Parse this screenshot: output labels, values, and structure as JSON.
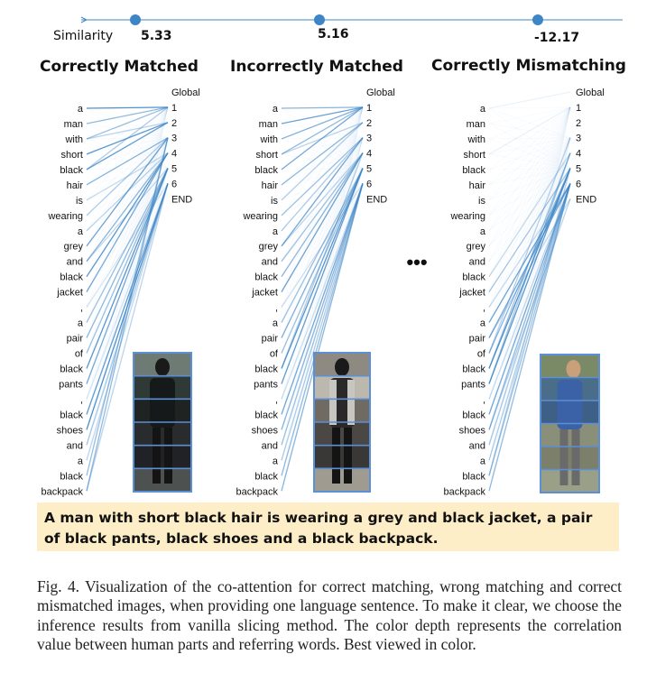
{
  "similarity_axis": {
    "label": "Similarity",
    "values": [
      "5.33",
      "5.16",
      "-12.17"
    ]
  },
  "panels": [
    {
      "title": "Correctly Matched",
      "words": [
        "a",
        "man",
        "with",
        "short",
        "black",
        "hair",
        "is",
        "wearing",
        "a",
        "grey",
        "and",
        "black",
        "jacket",
        ",",
        "a",
        "pair",
        "of",
        "black",
        "pants",
        ",",
        "black",
        "shoes",
        "and",
        "a",
        "black",
        "backpack"
      ],
      "parts": [
        "Global",
        "1",
        "2",
        "3",
        "4",
        "5",
        "6",
        "END"
      ],
      "image_stripes": 6
    },
    {
      "title": "Incorrectly Matched",
      "words": [
        "a",
        "man",
        "with",
        "short",
        "black",
        "hair",
        "is",
        "wearing",
        "a",
        "grey",
        "and",
        "black",
        "jacket",
        ",",
        "a",
        "pair",
        "of",
        "black",
        "pants",
        ",",
        "black",
        "shoes",
        "and",
        "a",
        "black",
        "backpack"
      ],
      "parts": [
        "Global",
        "1",
        "2",
        "3",
        "4",
        "5",
        "6",
        "END"
      ],
      "image_stripes": 6
    },
    {
      "title": "Correctly Mismatching",
      "words": [
        "a",
        "man",
        "with",
        "short",
        "black",
        "hair",
        "is",
        "wearing",
        "a",
        "grey",
        "and",
        "black",
        "jacket",
        ",",
        "a",
        "pair",
        "of",
        "black",
        "pants",
        ",",
        "black",
        "shoes",
        "and",
        "a",
        "black",
        "backpack"
      ],
      "parts": [
        "Global",
        "1",
        "2",
        "3",
        "4",
        "5",
        "6",
        "END"
      ],
      "image_stripes": 6
    }
  ],
  "ellipsis": "•••",
  "sentence": "A man with short black hair is wearing a grey and black jacket, a pair of black pants, black shoes and a black backpack.",
  "caption": "Fig. 4.  Visualization of the co-attention for correct matching, wrong matching and correct mismatched images, when providing one language sentence. To make it clear, we choose the inference results from vanilla slicing method. The color depth represents the correlation value between human parts and referring words. Best viewed in color.",
  "colors": {
    "attention_line": "#3d85c6",
    "axis_dot": "#3d85c6",
    "image_border": "#5b8fd6",
    "sentence_bg": "#fdeec8"
  }
}
